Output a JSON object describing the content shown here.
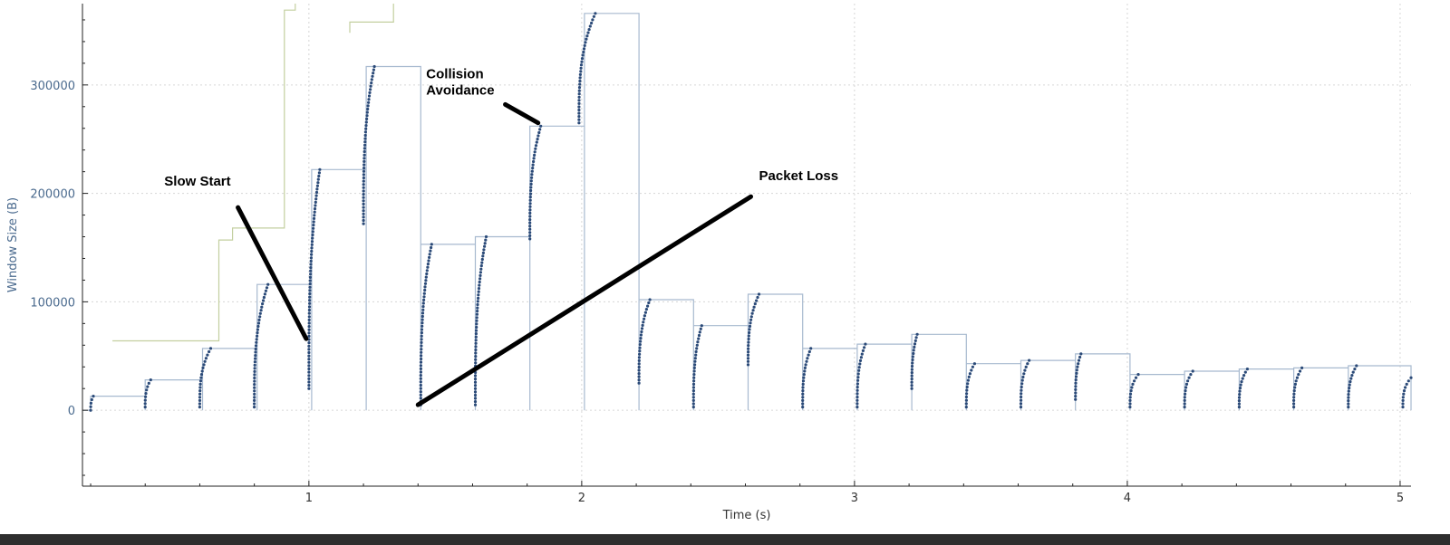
{
  "chart_data": {
    "type": "line",
    "xlabel": "Time (s)",
    "ylabel": "Window Size (B)",
    "xlim": [
      0.17,
      5.04
    ],
    "ylim": [
      -70000,
      375000
    ],
    "x_ticks": [
      {
        "value": 1,
        "label": "1"
      },
      {
        "value": 2,
        "label": "2"
      },
      {
        "value": 3,
        "label": "3"
      },
      {
        "value": 4,
        "label": "4"
      },
      {
        "value": 5,
        "label": "5"
      }
    ],
    "y_ticks": [
      {
        "value": 0,
        "label": "0"
      },
      {
        "value": 100000,
        "label": "100000"
      },
      {
        "value": 200000,
        "label": "200000"
      },
      {
        "value": 300000,
        "label": "300000"
      }
    ],
    "grid": true,
    "colors": {
      "window": "#a7b9cf",
      "dots": "#2b4a78",
      "green": "#c3cf9f",
      "annotation": "#000000"
    },
    "window_segments": [
      {
        "x0": 0.17,
        "x1": 0.2,
        "y": 0
      },
      {
        "x0": 0.2,
        "x1": 0.4,
        "y": 13000
      },
      {
        "x0": 0.4,
        "x1": 0.61,
        "y": 28000
      },
      {
        "x0": 0.61,
        "x1": 0.81,
        "y": 57000
      },
      {
        "x0": 0.81,
        "x1": 1.01,
        "y": 116000
      },
      {
        "x0": 1.01,
        "x1": 1.21,
        "y": 222000
      },
      {
        "x0": 1.21,
        "x1": 1.41,
        "y": 317000
      },
      {
        "x0": 1.41,
        "x1": 1.61,
        "y": 153000
      },
      {
        "x0": 1.61,
        "x1": 1.81,
        "y": 160000
      },
      {
        "x0": 1.81,
        "x1": 2.01,
        "y": 262000
      },
      {
        "x0": 2.01,
        "x1": 2.21,
        "y": 366000
      },
      {
        "x0": 2.21,
        "x1": 2.41,
        "y": 102000
      },
      {
        "x0": 2.41,
        "x1": 2.61,
        "y": 78000
      },
      {
        "x0": 2.61,
        "x1": 2.81,
        "y": 107000
      },
      {
        "x0": 2.81,
        "x1": 3.01,
        "y": 57000
      },
      {
        "x0": 3.01,
        "x1": 3.21,
        "y": 61000
      },
      {
        "x0": 3.21,
        "x1": 3.41,
        "y": 70000
      },
      {
        "x0": 3.41,
        "x1": 3.61,
        "y": 43000
      },
      {
        "x0": 3.61,
        "x1": 3.81,
        "y": 46000
      },
      {
        "x0": 3.81,
        "x1": 4.01,
        "y": 52000
      },
      {
        "x0": 4.01,
        "x1": 4.21,
        "y": 33000
      },
      {
        "x0": 4.21,
        "x1": 4.41,
        "y": 36000
      },
      {
        "x0": 4.41,
        "x1": 4.61,
        "y": 38000
      },
      {
        "x0": 4.61,
        "x1": 4.81,
        "y": 39000
      },
      {
        "x0": 4.81,
        "x1": 5.04,
        "y": 41000
      }
    ],
    "bursts": [
      {
        "x0": 0.2,
        "x1": 0.21,
        "y0": 0,
        "y1": 13000
      },
      {
        "x0": 0.4,
        "x1": 0.42,
        "y0": 3000,
        "y1": 28000
      },
      {
        "x0": 0.6,
        "x1": 0.64,
        "y0": 3000,
        "y1": 57000
      },
      {
        "x0": 0.8,
        "x1": 0.85,
        "y0": 3000,
        "y1": 116000
      },
      {
        "x0": 1.0,
        "x1": 1.04,
        "y0": 20000,
        "y1": 222000
      },
      {
        "x0": 1.2,
        "x1": 1.24,
        "y0": 172000,
        "y1": 317000
      },
      {
        "x0": 1.41,
        "x1": 1.45,
        "y0": 5000,
        "y1": 153000
      },
      {
        "x0": 1.61,
        "x1": 1.65,
        "y0": 5000,
        "y1": 160000
      },
      {
        "x0": 1.81,
        "x1": 1.85,
        "y0": 158000,
        "y1": 262000
      },
      {
        "x0": 1.99,
        "x1": 2.05,
        "y0": 265000,
        "y1": 366000
      },
      {
        "x0": 2.21,
        "x1": 2.25,
        "y0": 25000,
        "y1": 102000
      },
      {
        "x0": 2.41,
        "x1": 2.44,
        "y0": 3000,
        "y1": 78000
      },
      {
        "x0": 2.61,
        "x1": 2.65,
        "y0": 42000,
        "y1": 107000
      },
      {
        "x0": 2.81,
        "x1": 2.84,
        "y0": 3000,
        "y1": 57000
      },
      {
        "x0": 3.01,
        "x1": 3.04,
        "y0": 3000,
        "y1": 61000
      },
      {
        "x0": 3.21,
        "x1": 3.23,
        "y0": 20000,
        "y1": 70000
      },
      {
        "x0": 3.41,
        "x1": 3.44,
        "y0": 3000,
        "y1": 43000
      },
      {
        "x0": 3.61,
        "x1": 3.64,
        "y0": 3000,
        "y1": 46000
      },
      {
        "x0": 3.81,
        "x1": 3.83,
        "y0": 10000,
        "y1": 52000
      },
      {
        "x0": 4.01,
        "x1": 4.04,
        "y0": 3000,
        "y1": 33000
      },
      {
        "x0": 4.21,
        "x1": 4.24,
        "y0": 3000,
        "y1": 36000
      },
      {
        "x0": 4.41,
        "x1": 4.44,
        "y0": 3000,
        "y1": 38000
      },
      {
        "x0": 4.61,
        "x1": 4.64,
        "y0": 3000,
        "y1": 39000
      },
      {
        "x0": 4.81,
        "x1": 4.84,
        "y0": 3000,
        "y1": 41000
      },
      {
        "x0": 5.01,
        "x1": 5.04,
        "y0": 3000,
        "y1": 30000
      }
    ],
    "green_line": [
      [
        0.28,
        64000
      ],
      [
        0.67,
        64000
      ],
      [
        0.67,
        157000
      ],
      [
        0.72,
        157000
      ],
      [
        0.72,
        168000
      ],
      [
        0.91,
        168000
      ],
      [
        0.91,
        369000
      ],
      [
        0.95,
        369000
      ],
      [
        0.95,
        380000
      ]
    ],
    "green_line_2": [
      [
        1.15,
        348000
      ],
      [
        1.15,
        358000
      ],
      [
        1.31,
        358000
      ],
      [
        1.31,
        380000
      ]
    ],
    "annotations": [
      {
        "text": "Slow Start",
        "tx": 0.47,
        "ty": 207000,
        "lx0": 0.74,
        "ly0": 187000,
        "lx1": 0.99,
        "ly1": 66000,
        "lines": [
          "Slow Start"
        ]
      },
      {
        "text": "Collision Avoidance",
        "tx": 1.43,
        "ty": 306000,
        "lx0": 1.72,
        "ly0": 282000,
        "lx1": 1.84,
        "ly1": 265000,
        "lines": [
          "Collision",
          "Avoidance"
        ]
      },
      {
        "text": "Packet Loss",
        "tx": 2.65,
        "ty": 212000,
        "lx0": 2.62,
        "ly0": 197000,
        "lx1": 1.4,
        "ly1": 5000,
        "lines": [
          "Packet Loss"
        ]
      }
    ]
  }
}
